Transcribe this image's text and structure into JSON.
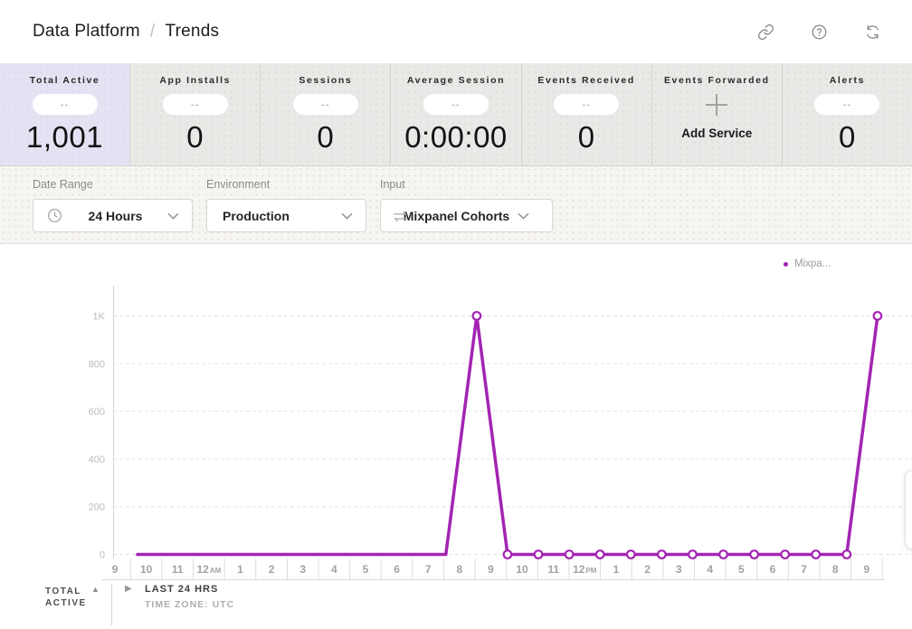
{
  "header": {
    "breadcrumb": {
      "section": "Data Platform",
      "separator": "/",
      "page": "Trends"
    },
    "icons": [
      "link-icon",
      "help-icon",
      "refresh-icon"
    ]
  },
  "stats_cards": [
    {
      "label": "Total Active",
      "placeholder": "--",
      "value": "1,001",
      "selected": true
    },
    {
      "label": "App Installs",
      "placeholder": "--",
      "value": "0",
      "selected": false
    },
    {
      "label": "Sessions",
      "placeholder": "--",
      "value": "0",
      "selected": false
    },
    {
      "label": "Average Session",
      "placeholder": "--",
      "value": "0:00:00",
      "selected": false
    },
    {
      "label": "Events Received",
      "placeholder": "--",
      "value": "0",
      "selected": false
    },
    {
      "label": "Events Forwarded",
      "action_label": "Add Service",
      "selected": false
    },
    {
      "label": "Alerts",
      "placeholder": "--",
      "value": "0",
      "selected": false
    }
  ],
  "filters": {
    "date_range": {
      "label": "Date Range",
      "value": "24 Hours",
      "icon": "clock-icon"
    },
    "environment": {
      "label": "Environment",
      "value": "Production"
    },
    "input": {
      "label": "Input",
      "value": "Mixpanel Cohorts",
      "icon": "transfer-icon"
    }
  },
  "chart_data": {
    "type": "line",
    "title": "",
    "x_labels": [
      "9",
      "10",
      "11",
      "12AM",
      "1",
      "2",
      "3",
      "4",
      "5",
      "6",
      "7",
      "8",
      "9",
      "10",
      "11",
      "12PM",
      "1",
      "2",
      "3",
      "4",
      "5",
      "6",
      "7",
      "8",
      "9"
    ],
    "series": [
      {
        "name": "Mixpa...",
        "color": "#a324b3",
        "values": [
          0,
          0,
          0,
          0,
          0,
          0,
          0,
          0,
          0,
          0,
          0,
          1000,
          0,
          0,
          0,
          0,
          0,
          0,
          0,
          0,
          0,
          0,
          0,
          0,
          1000
        ],
        "markers_from_index": 11
      }
    ],
    "y_ticks": [
      {
        "label": "1K",
        "value": 1000
      },
      {
        "label": "800",
        "value": 800
      },
      {
        "label": "600",
        "value": 600
      },
      {
        "label": "400",
        "value": 400
      },
      {
        "label": "200",
        "value": 200
      },
      {
        "label": "0",
        "value": 0
      }
    ],
    "ylim": [
      0,
      1000
    ],
    "grid": "dashed-horizontal",
    "legend": {
      "label": "Mixpa...",
      "position": "top-right"
    }
  },
  "chart_footer": {
    "metric_line1": "TOTAL",
    "metric_line2": "ACTIVE",
    "sort_icon": "sort-asc-icon",
    "expand_icon": "play-icon",
    "range_label": "LAST 24 HRS",
    "timezone_label": "TIME ZONE: UTC"
  },
  "colors": {
    "accent_purple": "#a324b3",
    "selected_card_bg": "#e7e2f3"
  }
}
